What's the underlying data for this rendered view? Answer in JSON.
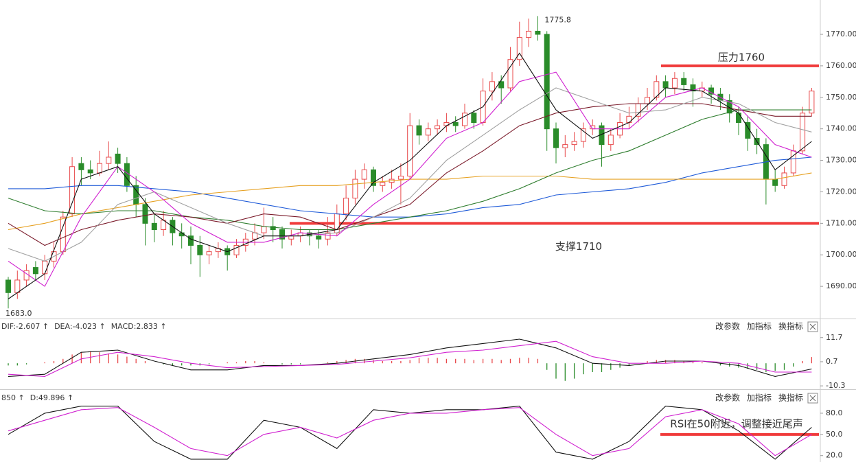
{
  "chart_data": [
    {
      "type": "candlestick",
      "open": [
        1692,
        1688,
        1692,
        1696,
        1694,
        1698,
        1701,
        1713,
        1729,
        1727,
        1726,
        1729,
        1732,
        1729,
        1722,
        1716,
        1710,
        1708,
        1711,
        1707,
        1706,
        1703,
        1700,
        1701,
        1702,
        1700,
        1703,
        1705,
        1707,
        1709,
        1708,
        1705,
        1706,
        1707,
        1706,
        1705,
        1707,
        1713,
        1718,
        1724,
        1727,
        1722,
        1723,
        1724,
        1725,
        1741,
        1738,
        1740,
        1741,
        1742,
        1741,
        1745,
        1742,
        1752,
        1755,
        1753,
        1762,
        1769,
        1771,
        1770,
        1740,
        1734,
        1735,
        1736,
        1740,
        1741,
        1735,
        1738,
        1742,
        1744,
        1748,
        1750,
        1755,
        1753,
        1756,
        1754,
        1752,
        1753,
        1751,
        1749,
        1745,
        1742,
        1737,
        1735,
        1724,
        1722,
        1726,
        1733,
        1745
      ],
      "high": [
        1693,
        1695,
        1697,
        1698,
        1700,
        1704,
        1714,
        1731,
        1731,
        1730,
        1733,
        1736,
        1734,
        1731,
        1725,
        1718,
        1713,
        1714,
        1712,
        1710,
        1709,
        1706,
        1703,
        1704,
        1703,
        1705,
        1707,
        1710,
        1715,
        1712,
        1709,
        1708,
        1709,
        1708,
        1708,
        1712,
        1716,
        1722,
        1727,
        1729,
        1728,
        1725,
        1727,
        1729,
        1745,
        1743,
        1742,
        1743,
        1745,
        1744,
        1748,
        1746,
        1756,
        1758,
        1757,
        1766,
        1774,
        1775,
        1775.8,
        1771,
        1742,
        1738,
        1739,
        1742,
        1743,
        1742,
        1740,
        1745,
        1747,
        1750,
        1753,
        1757,
        1757,
        1758,
        1758,
        1756,
        1755,
        1754,
        1753,
        1751,
        1747,
        1744,
        1740,
        1737,
        1727,
        1728,
        1735,
        1747,
        1753
      ],
      "low": [
        1683,
        1686,
        1690,
        1692,
        1692,
        1696,
        1700,
        1712,
        1722,
        1724,
        1725,
        1727,
        1726,
        1720,
        1712,
        1703,
        1704,
        1706,
        1703,
        1702,
        1697,
        1693,
        1697,
        1699,
        1695,
        1699,
        1701,
        1703,
        1705,
        1704,
        1702,
        1703,
        1704,
        1703,
        1702,
        1703,
        1706,
        1711,
        1716,
        1721,
        1720,
        1720,
        1721,
        1716,
        1724,
        1735,
        1736,
        1738,
        1739,
        1739,
        1740,
        1740,
        1741,
        1749,
        1748,
        1752,
        1760,
        1766,
        1768,
        1733,
        1729,
        1731,
        1733,
        1734,
        1738,
        1728,
        1733,
        1737,
        1740,
        1742,
        1746,
        1749,
        1750,
        1751,
        1752,
        1747,
        1750,
        1748,
        1746,
        1742,
        1738,
        1733,
        1732,
        1716,
        1720,
        1721,
        1725,
        1732,
        1744
      ],
      "close": [
        1688,
        1692,
        1695,
        1694,
        1698,
        1701,
        1712,
        1728,
        1727,
        1726,
        1729,
        1731,
        1729,
        1722,
        1716,
        1710,
        1708,
        1711,
        1707,
        1706,
        1703,
        1700,
        1701,
        1702,
        1700,
        1703,
        1705,
        1707,
        1709,
        1708,
        1705,
        1706,
        1707,
        1706,
        1705,
        1707,
        1713,
        1718,
        1724,
        1727,
        1722,
        1723,
        1724,
        1725,
        1741,
        1738,
        1740,
        1741,
        1742,
        1741,
        1745,
        1742,
        1752,
        1755,
        1753,
        1762,
        1769,
        1771,
        1770,
        1740,
        1734,
        1735,
        1736,
        1740,
        1741,
        1735,
        1738,
        1742,
        1744,
        1748,
        1750,
        1755,
        1753,
        1756,
        1754,
        1752,
        1753,
        1751,
        1749,
        1745,
        1742,
        1737,
        1735,
        1724,
        1722,
        1726,
        1733,
        1745,
        1752
      ],
      "up_color": "#e8484a",
      "down_color": "#2a8c2a",
      "ylim": [
        1680,
        1780.9
      ],
      "yticks": [
        {
          "value": 1690,
          "label": "1690.00"
        },
        {
          "value": 1700,
          "label": "1700.00"
        },
        {
          "value": 1710,
          "label": "1710.00"
        },
        {
          "value": 1720,
          "label": "1720.00"
        },
        {
          "value": 1730,
          "label": "1730.00"
        },
        {
          "value": 1740,
          "label": "1740.00"
        },
        {
          "value": 1750,
          "label": "1750.00"
        },
        {
          "value": 1760,
          "label": "1760.00"
        },
        {
          "value": 1770,
          "label": "1770.00"
        }
      ],
      "lines": [
        {
          "color": "#1e5ad8",
          "x": [
            0,
            4,
            8,
            12,
            16,
            20,
            24,
            28,
            32,
            36,
            40,
            44,
            48,
            52,
            56,
            60,
            64,
            68,
            72,
            76,
            80,
            84,
            88
          ],
          "values": [
            1721,
            1721,
            1722,
            1722,
            1721,
            1720,
            1718,
            1716,
            1714,
            1713,
            1712,
            1712,
            1713,
            1715,
            1716,
            1719,
            1720,
            1721,
            1723,
            1726,
            1728,
            1730,
            1731
          ]
        },
        {
          "color": "#e6a020",
          "x": [
            0,
            4,
            8,
            12,
            16,
            20,
            24,
            28,
            32,
            36,
            40,
            44,
            48,
            52,
            56,
            60,
            64,
            68,
            72,
            76,
            80,
            84,
            88
          ],
          "values": [
            1708,
            1710,
            1713,
            1715,
            1717,
            1719,
            1720,
            1721,
            1722,
            1722,
            1723,
            1724,
            1724,
            1725,
            1725,
            1725,
            1724,
            1724,
            1724,
            1724,
            1724,
            1724,
            1726
          ]
        },
        {
          "color": "#2e7d2e",
          "x": [
            0,
            4,
            8,
            12,
            16,
            20,
            24,
            28,
            32,
            36,
            40,
            44,
            48,
            52,
            56,
            60,
            64,
            68,
            72,
            76,
            80,
            84,
            88
          ],
          "values": [
            1718,
            1714,
            1713,
            1714,
            1714,
            1712,
            1711,
            1709,
            1708,
            1708,
            1710,
            1712,
            1714,
            1717,
            1721,
            1726,
            1730,
            1733,
            1738,
            1743,
            1746,
            1746,
            1746
          ]
        },
        {
          "color": "#7a1a2a",
          "x": [
            0,
            4,
            8,
            12,
            16,
            20,
            24,
            28,
            32,
            36,
            40,
            44,
            48,
            52,
            56,
            60,
            64,
            68,
            72,
            76,
            80,
            84,
            88
          ],
          "values": [
            1710,
            1703,
            1708,
            1711,
            1713,
            1712,
            1710,
            1713,
            1712,
            1708,
            1712,
            1716,
            1726,
            1733,
            1741,
            1745,
            1747,
            1748,
            1748,
            1748,
            1746,
            1744,
            1744
          ]
        },
        {
          "color": "#a0a0a0",
          "x": [
            0,
            4,
            8,
            12,
            16,
            20,
            24,
            28,
            32,
            36,
            40,
            44,
            48,
            52,
            56,
            60,
            64,
            68,
            72,
            76,
            80,
            84,
            88
          ],
          "values": [
            1702,
            1698,
            1704,
            1716,
            1720,
            1715,
            1710,
            1706,
            1706,
            1707,
            1712,
            1718,
            1730,
            1738,
            1746,
            1753,
            1749,
            1745,
            1746,
            1750,
            1748,
            1742,
            1739
          ]
        },
        {
          "color": "#d020d0",
          "x": [
            0,
            4,
            8,
            12,
            16,
            20,
            24,
            28,
            32,
            36,
            40,
            44,
            48,
            52,
            56,
            60,
            64,
            68,
            72,
            76,
            80,
            84,
            88
          ],
          "values": [
            1698,
            1690,
            1712,
            1728,
            1720,
            1710,
            1704,
            1704,
            1707,
            1706,
            1716,
            1724,
            1737,
            1742,
            1755,
            1758,
            1740,
            1740,
            1750,
            1753,
            1747,
            1735,
            1731
          ]
        },
        {
          "color": "#111111",
          "x": [
            0,
            4,
            8,
            12,
            16,
            20,
            24,
            28,
            32,
            36,
            40,
            44,
            48,
            52,
            56,
            60,
            64,
            68,
            72,
            76,
            80,
            84,
            88
          ],
          "values": [
            1686,
            1694,
            1724,
            1728,
            1713,
            1705,
            1701,
            1706,
            1706,
            1708,
            1723,
            1730,
            1741,
            1747,
            1764,
            1746,
            1737,
            1742,
            1753,
            1752,
            1745,
            1727,
            1736
          ]
        }
      ],
      "max_label": "1775.8",
      "min_label": "1683.0",
      "reference_lines": [
        {
          "value": 1760,
          "color": "#f03a3a",
          "label": "压力1760"
        },
        {
          "value": 1710,
          "color": "#f03a3a",
          "label": "支撑1710"
        }
      ]
    },
    {
      "type": "macd",
      "header": [
        {
          "text": "DIF:-2.607 ↑",
          "color": "#111111"
        },
        {
          "text": "DEA:-4.023 ↑",
          "color": "#d020d0"
        },
        {
          "text": "MACD:2.833 ↑",
          "color": "#555555"
        }
      ],
      "buttons": [
        "改参数",
        "加指标",
        "换指标"
      ],
      "histogram": [
        -1,
        -1,
        -0.5,
        0,
        0.5,
        1,
        2,
        4,
        5,
        5.5,
        5,
        4.5,
        4,
        3,
        2,
        1,
        0,
        -0.5,
        -1,
        -1,
        -1,
        -1,
        -0.5,
        0,
        0.5,
        0.5,
        1,
        1,
        0.5,
        0,
        -0.5,
        -0.5,
        -0.5,
        0,
        0,
        0.5,
        1,
        1.5,
        2,
        2,
        1.5,
        1,
        1,
        1,
        1.5,
        2.5,
        2.5,
        2.5,
        2,
        2,
        2,
        1.5,
        2,
        2,
        1.5,
        2,
        2.5,
        2.5,
        2,
        -3,
        -7,
        -8,
        -7,
        -5,
        -4,
        -4,
        -3,
        -2,
        -1,
        0,
        1,
        1.5,
        1.5,
        1.5,
        1,
        1,
        0.5,
        0,
        -1,
        -1.5,
        -2,
        -2.5,
        -3,
        -4,
        -3.5,
        -3,
        -1.5,
        1,
        2.833
      ],
      "up_color": "#e8484a",
      "down_color": "#2a8c2a",
      "lines": [
        {
          "color": "#111111",
          "x": [
            0,
            4,
            8,
            12,
            16,
            20,
            24,
            28,
            32,
            36,
            40,
            44,
            48,
            52,
            56,
            60,
            64,
            68,
            72,
            76,
            80,
            84,
            88
          ],
          "values": [
            -6,
            -5,
            5,
            6,
            1,
            -3,
            -3,
            -1,
            -1,
            0,
            2,
            4,
            7,
            9,
            11,
            7,
            0,
            -1,
            1,
            1,
            -1,
            -6,
            -2.607
          ]
        },
        {
          "color": "#d020d0",
          "x": [
            0,
            4,
            8,
            12,
            16,
            20,
            24,
            28,
            32,
            36,
            40,
            44,
            48,
            52,
            56,
            60,
            64,
            68,
            72,
            76,
            80,
            84,
            88
          ],
          "values": [
            -5,
            -6,
            2,
            5,
            3,
            0,
            -2,
            -1.5,
            -1,
            -0.5,
            1,
            2.5,
            5,
            6,
            8,
            10,
            3,
            0,
            0,
            1,
            0,
            -4,
            -4.023
          ]
        }
      ],
      "ylim": [
        -11.2,
        18.5
      ],
      "yticks": [
        11.7,
        0.7,
        -10.3
      ]
    },
    {
      "type": "kdj",
      "header": [
        {
          "text": "850 ↑",
          "color": "#111111"
        },
        {
          "text": "D:49.896 ↑",
          "color": "#d020d0"
        }
      ],
      "buttons": [
        "改参数",
        "加指标",
        "换指标"
      ],
      "lines": [
        {
          "color": "#111111",
          "x": [
            0,
            4,
            8,
            12,
            16,
            20,
            24,
            28,
            32,
            36,
            40,
            44,
            48,
            52,
            56,
            60,
            64,
            68,
            72,
            76,
            80,
            84,
            88
          ],
          "values": [
            50,
            80,
            90,
            90,
            40,
            15,
            15,
            70,
            60,
            30,
            85,
            80,
            85,
            85,
            90,
            25,
            15,
            40,
            90,
            85,
            55,
            15,
            60
          ]
        },
        {
          "color": "#d020d0",
          "x": [
            0,
            4,
            8,
            12,
            16,
            20,
            24,
            28,
            32,
            36,
            40,
            44,
            48,
            52,
            56,
            60,
            64,
            68,
            72,
            76,
            80,
            84,
            88
          ],
          "values": [
            55,
            70,
            85,
            88,
            60,
            30,
            20,
            50,
            60,
            45,
            70,
            80,
            80,
            85,
            88,
            50,
            20,
            30,
            75,
            85,
            65,
            20,
            49.896
          ]
        }
      ],
      "ylim": [
        11,
        111
      ],
      "yticks": [
        {
          "value": 80,
          "label": "80.0"
        },
        {
          "value": 50,
          "label": "50.0"
        },
        {
          "value": 20,
          "label": "20.0"
        }
      ],
      "reference_lines": [
        {
          "value": 50,
          "color": "#f03a3a",
          "label": "RSI在50附近，调整接近尾声"
        }
      ]
    }
  ]
}
